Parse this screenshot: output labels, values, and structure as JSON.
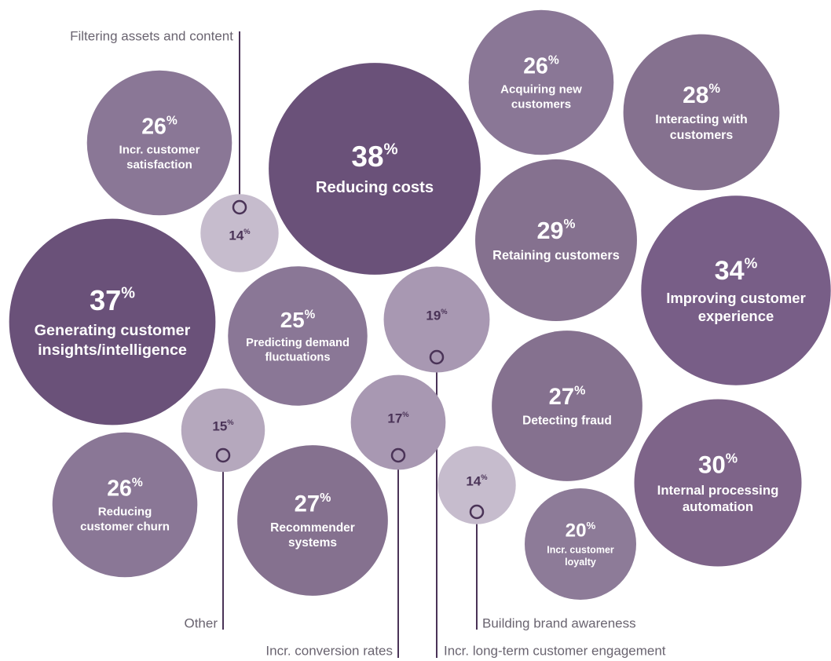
{
  "chart_data": {
    "type": "bubble",
    "bubbles": [
      {
        "label": [
          "Filtering assets and content"
        ],
        "value": 14,
        "value_label": "14%",
        "color": "#c6bccd"
      },
      {
        "label": [
          "Incr. customer",
          "satisfaction"
        ],
        "value": 26,
        "value_label": "26%",
        "color": "#8a7796"
      },
      {
        "label": [
          "Reducing costs"
        ],
        "value": 38,
        "value_label": "38%",
        "color": "#6a5179"
      },
      {
        "label": [
          "Acquiring new",
          "customers"
        ],
        "value": 26,
        "value_label": "26%",
        "color": "#8a7796"
      },
      {
        "label": [
          "Interacting with",
          "customers"
        ],
        "value": 28,
        "value_label": "28%",
        "color": "#85718f"
      },
      {
        "label": [
          "Retaining customers"
        ],
        "value": 29,
        "value_label": "29%",
        "color": "#85718f"
      },
      {
        "label": [
          "Improving customer",
          "experience"
        ],
        "value": 34,
        "value_label": "34%",
        "color": "#785e87"
      },
      {
        "label": [
          "Generating customer",
          "insights/intelligence"
        ],
        "value": 37,
        "value_label": "37%",
        "color": "#6a5179"
      },
      {
        "label": [
          "Predicting demand",
          "fluctuations"
        ],
        "value": 25,
        "value_label": "25%",
        "color": "#8a7796"
      },
      {
        "label": [
          "Incr. long-term customer engagement"
        ],
        "value": 19,
        "value_label": "19%",
        "color": "#a898b2"
      },
      {
        "label": [
          "Detecting fraud"
        ],
        "value": 27,
        "value_label": "27%",
        "color": "#85718f"
      },
      {
        "label": [
          "Other"
        ],
        "value": 15,
        "value_label": "15%",
        "color": "#b5a8bd"
      },
      {
        "label": [
          "Incr. conversion rates"
        ],
        "value": 17,
        "value_label": "17%",
        "color": "#a898b2"
      },
      {
        "label": [
          "Reducing",
          "customer churn"
        ],
        "value": 26,
        "value_label": "26%",
        "color": "#8a7796"
      },
      {
        "label": [
          "Recommender",
          "systems"
        ],
        "value": 27,
        "value_label": "27%",
        "color": "#85718f"
      },
      {
        "label": [
          "Building brand awareness"
        ],
        "value": 14,
        "value_label": "14%",
        "color": "#c6bccd"
      },
      {
        "label": [
          "Internal processing",
          "automation"
        ],
        "value": 30,
        "value_label": "30%",
        "color": "#7e6489"
      },
      {
        "label": [
          "Incr. customer",
          "loyalty"
        ],
        "value": 20,
        "value_label": "20%",
        "color": "#8d7b98"
      }
    ]
  }
}
